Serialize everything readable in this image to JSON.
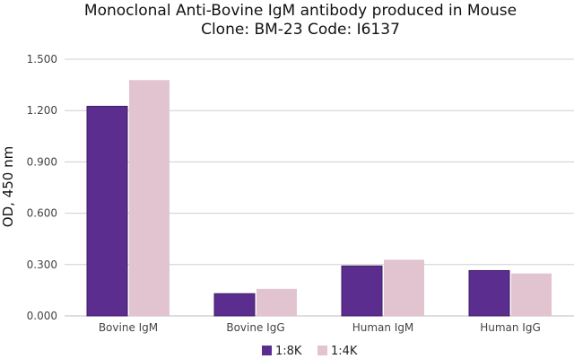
{
  "chart_data": {
    "type": "bar",
    "title_lines": [
      "Monoclonal Anti-Bovine IgM antibody produced in Mouse",
      "Clone: BM-23  Code: I6137"
    ],
    "xlabel": "",
    "ylabel": "OD, 450 nm",
    "categories": [
      "Bovine IgM",
      "Bovine IgG",
      "Human IgM",
      "Human IgG"
    ],
    "series": [
      {
        "name": "1:8K",
        "color": "#5b2d8e",
        "values": [
          1.225,
          0.13,
          0.292,
          0.265
        ]
      },
      {
        "name": "1:4K",
        "color": "#e2c3d0",
        "values": [
          1.378,
          0.158,
          0.328,
          0.248
        ]
      }
    ],
    "ylim": [
      0,
      1.5
    ],
    "yticks": [
      "0.000",
      "0.300",
      "0.600",
      "0.900",
      "1.200",
      "1.500"
    ],
    "ytick_values": [
      0,
      0.3,
      0.6,
      0.9,
      1.2,
      1.5
    ],
    "grid": true,
    "legend_position": "bottom"
  }
}
